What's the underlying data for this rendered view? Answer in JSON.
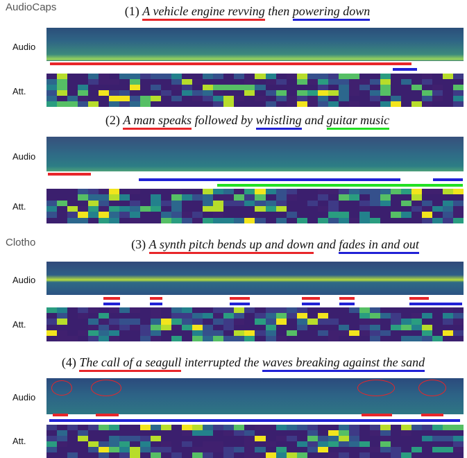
{
  "sections": [
    {
      "label": "AudioCaps"
    },
    {
      "label": "Clotho"
    }
  ],
  "audio_label": "Audio",
  "att_label": "Att.",
  "examples": [
    {
      "number": "(1)",
      "segments": [
        "A vehicle engine revving",
        "then",
        "powering down"
      ]
    },
    {
      "number": "(2)",
      "segments": [
        "A man speaks",
        "followed by",
        "whistling",
        "and",
        "guitar music"
      ]
    },
    {
      "number": "(3)",
      "segments": [
        "A synth pitch bends up and down",
        "and",
        "fades in and out"
      ]
    },
    {
      "number": "(4)",
      "segments": [
        "The call of a seagull",
        "interrupted the",
        "waves breaking against the sand"
      ]
    }
  ]
}
